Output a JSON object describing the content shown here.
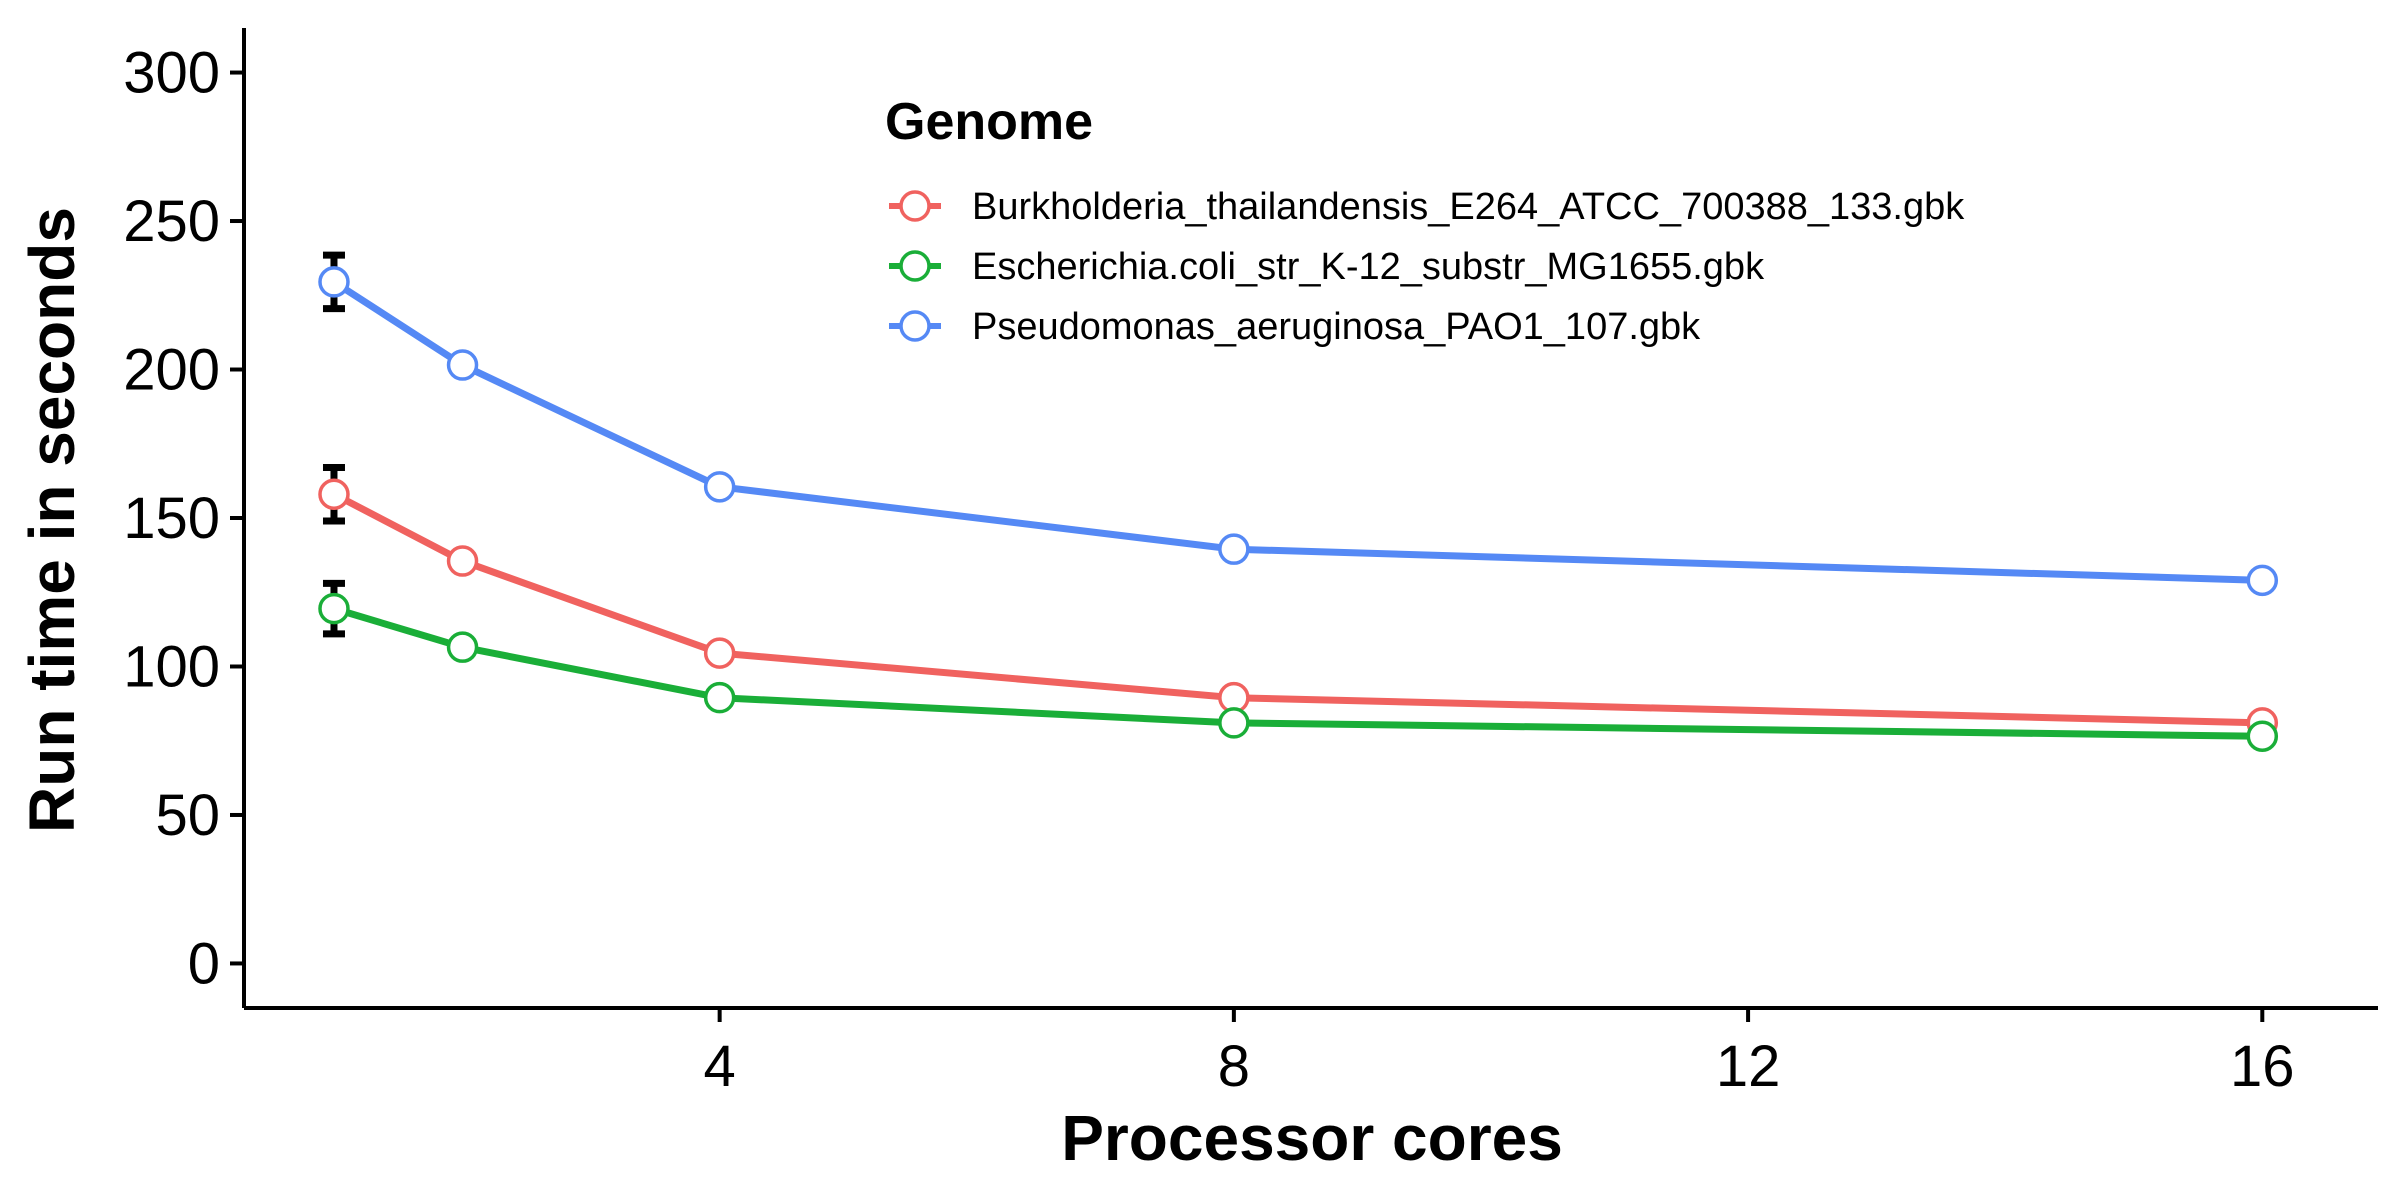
{
  "chart_data": {
    "type": "line",
    "title": "",
    "xlabel": "Processor cores",
    "ylabel": "Run time in seconds",
    "xlim": [
      0.3,
      16.9
    ],
    "ylim": [
      -15,
      315
    ],
    "xticks": [
      4,
      8,
      12,
      16
    ],
    "yticks": [
      0,
      50,
      100,
      150,
      200,
      250,
      300
    ],
    "xtick_labels": [
      "4",
      "8",
      "12",
      "16"
    ],
    "ytick_labels": [
      "0",
      "50",
      "100",
      "150",
      "200",
      "250",
      "300"
    ],
    "grid": false,
    "legend": {
      "title": "Genome",
      "position": "top-center"
    },
    "series": [
      {
        "name": "Burkholderia_thailandensis_E264_ATCC_700388_133.gbk",
        "color": "#F0625F",
        "x": [
          1,
          2,
          4,
          8,
          16
        ],
        "y": [
          158,
          135.5,
          104.5,
          89.5,
          81
        ],
        "error": [
          9,
          0,
          0,
          0,
          0
        ]
      },
      {
        "name": "Escherichia.coli_str_K-12_substr_MG1655.gbk",
        "color": "#1AAE38",
        "x": [
          1,
          2,
          4,
          8,
          16
        ],
        "y": [
          119.5,
          106.5,
          89.5,
          81,
          76.5
        ],
        "error": [
          8.5,
          0,
          0,
          0,
          0
        ]
      },
      {
        "name": "Pseudomonas_aeruginosa_PAO1_107.gbk",
        "color": "#5589F5",
        "x": [
          1,
          2,
          4,
          8,
          16
        ],
        "y": [
          229.5,
          201.5,
          160.5,
          139.5,
          129
        ],
        "error": [
          9,
          0,
          0,
          0,
          0
        ]
      }
    ]
  }
}
